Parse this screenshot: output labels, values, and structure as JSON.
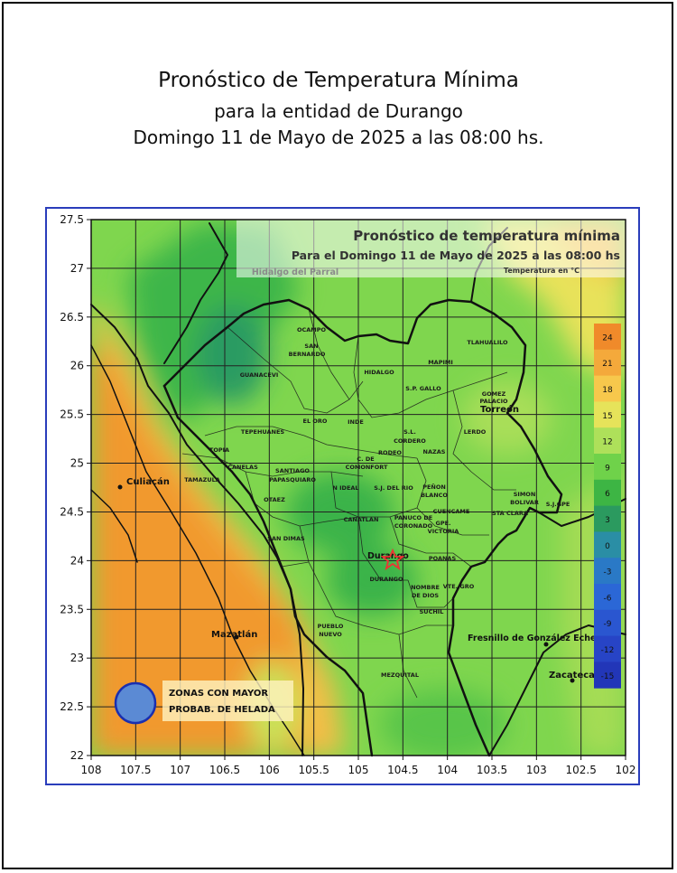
{
  "header": {
    "title": "Pronóstico de Temperatura Mínima",
    "subtitle": "para la entidad de Durango",
    "date_line": "Domingo 11 de Mayo de 2025 a las 08:00 hs."
  },
  "map": {
    "inset_title": "Pronóstico de temperatura mínima",
    "inset_date": "Para el Domingo 11 de Mayo de 2025 a las 08:00 hs",
    "inset_unit": "Temperatura en °C",
    "x_ticks": [
      "108",
      "107.5",
      "107",
      "106.5",
      "106",
      "105.5",
      "105",
      "104.5",
      "104",
      "103.5",
      "103",
      "102.5",
      "102"
    ],
    "y_ticks": [
      "27.5",
      "27",
      "26.5",
      "26",
      "25.5",
      "25",
      "24.5",
      "24",
      "23.5",
      "23",
      "22.5",
      "22"
    ],
    "colorbar": [
      {
        "label": "24",
        "color": "#f08a2a"
      },
      {
        "label": "21",
        "color": "#f4a93b"
      },
      {
        "label": "18",
        "color": "#f7c84c"
      },
      {
        "label": "15",
        "color": "#e6e35a"
      },
      {
        "label": "12",
        "color": "#aee05a"
      },
      {
        "label": "9",
        "color": "#6fd24a"
      },
      {
        "label": "6",
        "color": "#3db544"
      },
      {
        "label": "3",
        "color": "#2b9a5f"
      },
      {
        "label": "0",
        "color": "#2a8ea5"
      },
      {
        "label": "-3",
        "color": "#2a79c6"
      },
      {
        "label": "-6",
        "color": "#2b67d6"
      },
      {
        "label": "-9",
        "color": "#2a56d0"
      },
      {
        "label": "-12",
        "color": "#2744c6"
      },
      {
        "label": "-15",
        "color": "#2236b8"
      }
    ],
    "cities": {
      "hidalgo_parral": "Hidalgo del Parral",
      "culiacan": "Culiacán",
      "mazatlan": "Mazatlán",
      "torreon": "Torreón",
      "fresnillo": "Fresnillo de González Eche",
      "zacatecas": "Zacatecas",
      "durango": "Durango"
    },
    "municipalities": [
      "OCAMPO",
      "SAN",
      "BERNARDO",
      "GUANACEVI",
      "HIDALGO",
      "MAPIMI",
      "TLAHUALILO",
      "GOMEZ",
      "PALACIO",
      "S.P. GALLO",
      "EL ORO",
      "INDE",
      "TEPEHUANES",
      "S.L.",
      "CORDERO",
      "LERDO",
      "TOPIA",
      "CANELAS",
      "RODEO",
      "NAZAS",
      "C. DE",
      "COMONFORT",
      "TAMAZULA",
      "SANTIAGO",
      "PAPASQUIARO",
      "PEÑON",
      "BLANCO",
      "N IDEAL",
      "S.J. DEL RIO",
      "SIMON",
      "BOLIVAR",
      "S.J.GPE",
      "OTAEZ",
      "CUENCAME",
      "STA CLARA",
      "CANATLAN",
      "PANUCO DE",
      "CORONADO",
      "GPE.",
      "VICTORIA",
      "SAN DIMAS",
      "POANAS",
      "DURANGO",
      "NOMBRE",
      "DE DIOS",
      "VTE. GRO",
      "SUCHIL",
      "PUEBLO",
      "NUEVO",
      "MEZQUITAL"
    ],
    "legend": {
      "line1": "ZONAS CON MAYOR",
      "line2": "PROBAB. DE HELADA"
    }
  }
}
